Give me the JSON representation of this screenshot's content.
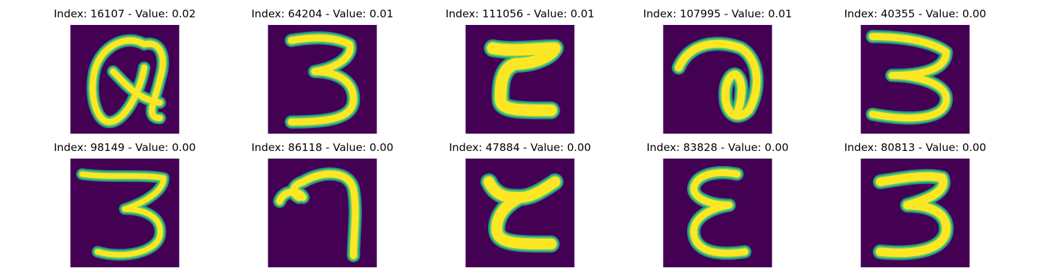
{
  "colors": {
    "background": "#440154",
    "stroke_core": "#fde725",
    "stroke_mid": "#5ec962",
    "stroke_edge": "#21918c"
  },
  "panels": [
    {
      "title": "Index: 16107 - Value: 0.02"
    },
    {
      "title": "Index: 64204 - Value: 0.01"
    },
    {
      "title": "Index: 111056 - Value: 0.01"
    },
    {
      "title": "Index: 107995 - Value: 0.01"
    },
    {
      "title": "Index: 40355 - Value: 0.00"
    },
    {
      "title": "Index: 98149 - Value: 0.00"
    },
    {
      "title": "Index: 86118 - Value: 0.00"
    },
    {
      "title": "Index: 47884 - Value: 0.00"
    },
    {
      "title": "Index: 83828 - Value: 0.00"
    },
    {
      "title": "Index: 80813 - Value: 0.00"
    }
  ]
}
